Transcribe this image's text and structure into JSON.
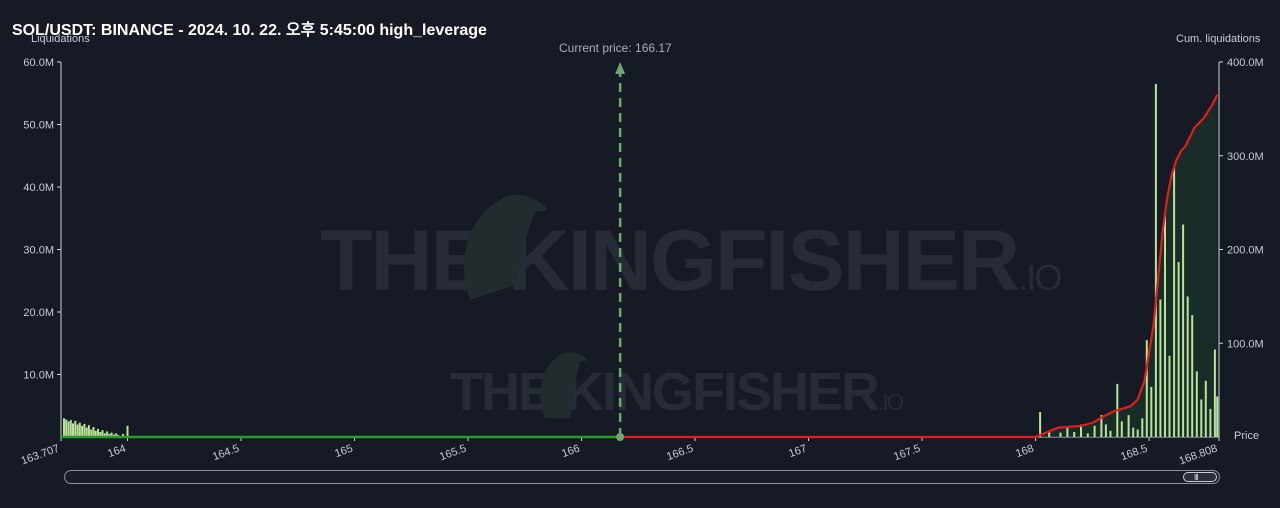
{
  "title": "SOL/USDT: BINANCE - 2024. 10. 22. 오후 5:45:00 high_leverage",
  "left_axis_title": "Liquidations",
  "right_axis_title": "Cum. liquidations",
  "x_axis_title": "Price",
  "current_price_label": "Current price: 166.17",
  "watermark": "THE KINGFISHER.IO",
  "colors": {
    "background": "#161a25",
    "long_cum": "#2e9a2e",
    "short_cum": "#e01e1e",
    "bars": "#b8e39a",
    "current_price": "#6fa86f"
  },
  "scrollbar": {
    "grip": "III"
  },
  "chart_data": {
    "type": "bar",
    "title": "SOL/USDT: BINANCE - 2024. 10. 22. 오후 5:45:00 high_leverage",
    "xlabel": "Price",
    "ylabel": "Liquidations",
    "y2label": "Cum. liquidations",
    "xlim": [
      163.707,
      168.808
    ],
    "ylim": [
      0,
      60000000
    ],
    "y2lim": [
      0,
      400000000
    ],
    "current_price": 166.17,
    "x_ticks": [
      163.707,
      164,
      164.5,
      165,
      165.5,
      166,
      166.5,
      167,
      167.5,
      168,
      168.5,
      168.808
    ],
    "x_tick_labels": [
      "163.707",
      "164",
      "164.5",
      "165",
      "165.5",
      "166",
      "166.5",
      "167",
      "167.5",
      "168",
      "168.5",
      "168.808"
    ],
    "y_ticks": [
      10000000,
      20000000,
      30000000,
      40000000,
      50000000,
      60000000
    ],
    "y_tick_labels": [
      "10.0M",
      "20.0M",
      "30.0M",
      "40.0M",
      "50.0M",
      "60.0M"
    ],
    "y2_ticks": [
      100000000,
      200000000,
      300000000,
      400000000
    ],
    "y2_tick_labels": [
      "100.0M",
      "200.0M",
      "300.0M",
      "400.0M"
    ],
    "series": [
      {
        "name": "Liquidations",
        "axis": "left",
        "x": [
          163.72,
          163.73,
          163.74,
          163.75,
          163.76,
          163.77,
          163.78,
          163.79,
          163.8,
          163.81,
          163.82,
          163.83,
          163.84,
          163.85,
          163.86,
          163.87,
          163.88,
          163.89,
          163.9,
          163.91,
          163.92,
          163.93,
          163.94,
          163.95,
          163.96,
          163.98,
          164.0,
          168.02,
          168.06,
          168.11,
          168.14,
          168.17,
          168.2,
          168.23,
          168.26,
          168.29,
          168.31,
          168.33,
          168.36,
          168.38,
          168.41,
          168.43,
          168.45,
          168.47,
          168.49,
          168.51,
          168.53,
          168.55,
          168.57,
          168.59,
          168.61,
          168.63,
          168.65,
          168.67,
          168.69,
          168.71,
          168.73,
          168.75,
          168.77,
          168.79,
          168.8
        ],
        "values": [
          3000000,
          2800000,
          2500000,
          2700000,
          2200000,
          2600000,
          2000000,
          2300000,
          1800000,
          2100000,
          1500000,
          1900000,
          1200000,
          1600000,
          1000000,
          1300000,
          800000,
          1100000,
          600000,
          900000,
          500000,
          700000,
          400000,
          600000,
          300000,
          500000,
          1800000,
          4000000,
          1000000,
          700000,
          1500000,
          800000,
          2000000,
          600000,
          1800000,
          3500000,
          2000000,
          1000000,
          8500000,
          2500000,
          3500000,
          1500000,
          1200000,
          3000000,
          15500000,
          8000000,
          56500000,
          22000000,
          35500000,
          13000000,
          43000000,
          28000000,
          34000000,
          22500000,
          19500000,
          10500000,
          6000000,
          9000000,
          4500000,
          14000000,
          6500000
        ]
      },
      {
        "name": "Cum. liquidations (long)",
        "axis": "right",
        "x": [
          163.707,
          166.17
        ],
        "values": [
          0,
          0
        ]
      },
      {
        "name": "Cum. liquidations (short)",
        "axis": "right",
        "x": [
          166.17,
          168.0,
          168.05,
          168.1,
          168.2,
          168.25,
          168.3,
          168.35,
          168.38,
          168.42,
          168.45,
          168.48,
          168.5,
          168.52,
          168.54,
          168.56,
          168.58,
          168.6,
          168.62,
          168.64,
          168.66,
          168.7,
          168.74,
          168.78,
          168.8
        ],
        "values": [
          0,
          0,
          5000000,
          10000000,
          12000000,
          15000000,
          22000000,
          28000000,
          30000000,
          33000000,
          40000000,
          60000000,
          90000000,
          120000000,
          170000000,
          220000000,
          255000000,
          280000000,
          295000000,
          305000000,
          310000000,
          330000000,
          340000000,
          355000000,
          365000000
        ]
      }
    ]
  }
}
